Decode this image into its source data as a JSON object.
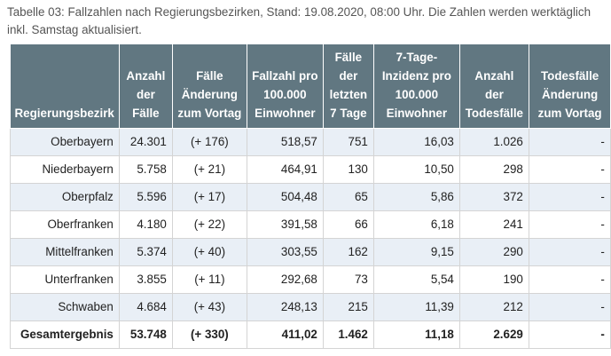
{
  "caption": "Tabelle 03: Fallzahlen nach Regierungsbezirken, Stand: 19.08.2020, 08:00 Uhr. Die Zahlen werden werktäglich inkl. Samstag aktualisiert.",
  "columns": [
    "Regierungsbezirk",
    "Anzahl der Fälle",
    "Fälle Änderung zum Vortag",
    "Fallzahl pro 100.000 Einwohner",
    "Fälle der letzten 7 Tage",
    "7-Tage-Inzidenz pro 100.000 Einwohner",
    "Anzahl der Todesfälle",
    "Todesfälle Änderung zum Vortag"
  ],
  "rows": [
    [
      "Oberbayern",
      "24.301",
      "(+ 176)",
      "518,57",
      "751",
      "16,03",
      "1.026",
      "-"
    ],
    [
      "Niederbayern",
      "5.758",
      "(+ 21)",
      "464,91",
      "130",
      "10,50",
      "298",
      "-"
    ],
    [
      "Oberpfalz",
      "5.596",
      "(+ 17)",
      "504,48",
      "65",
      "5,86",
      "372",
      "-"
    ],
    [
      "Oberfranken",
      "4.180",
      "(+ 22)",
      "391,58",
      "66",
      "6,18",
      "241",
      "-"
    ],
    [
      "Mittelfranken",
      "5.374",
      "(+ 40)",
      "303,55",
      "162",
      "9,15",
      "290",
      "-"
    ],
    [
      "Unterfranken",
      "3.855",
      "(+ 11)",
      "292,68",
      "73",
      "5,54",
      "190",
      "-"
    ],
    [
      "Schwaben",
      "4.684",
      "(+ 43)",
      "248,13",
      "215",
      "11,39",
      "212",
      "-"
    ]
  ],
  "total": [
    "Gesamtergebnis",
    "53.748",
    "(+ 330)",
    "411,02",
    "1.462",
    "11,18",
    "2.629",
    "-"
  ]
}
